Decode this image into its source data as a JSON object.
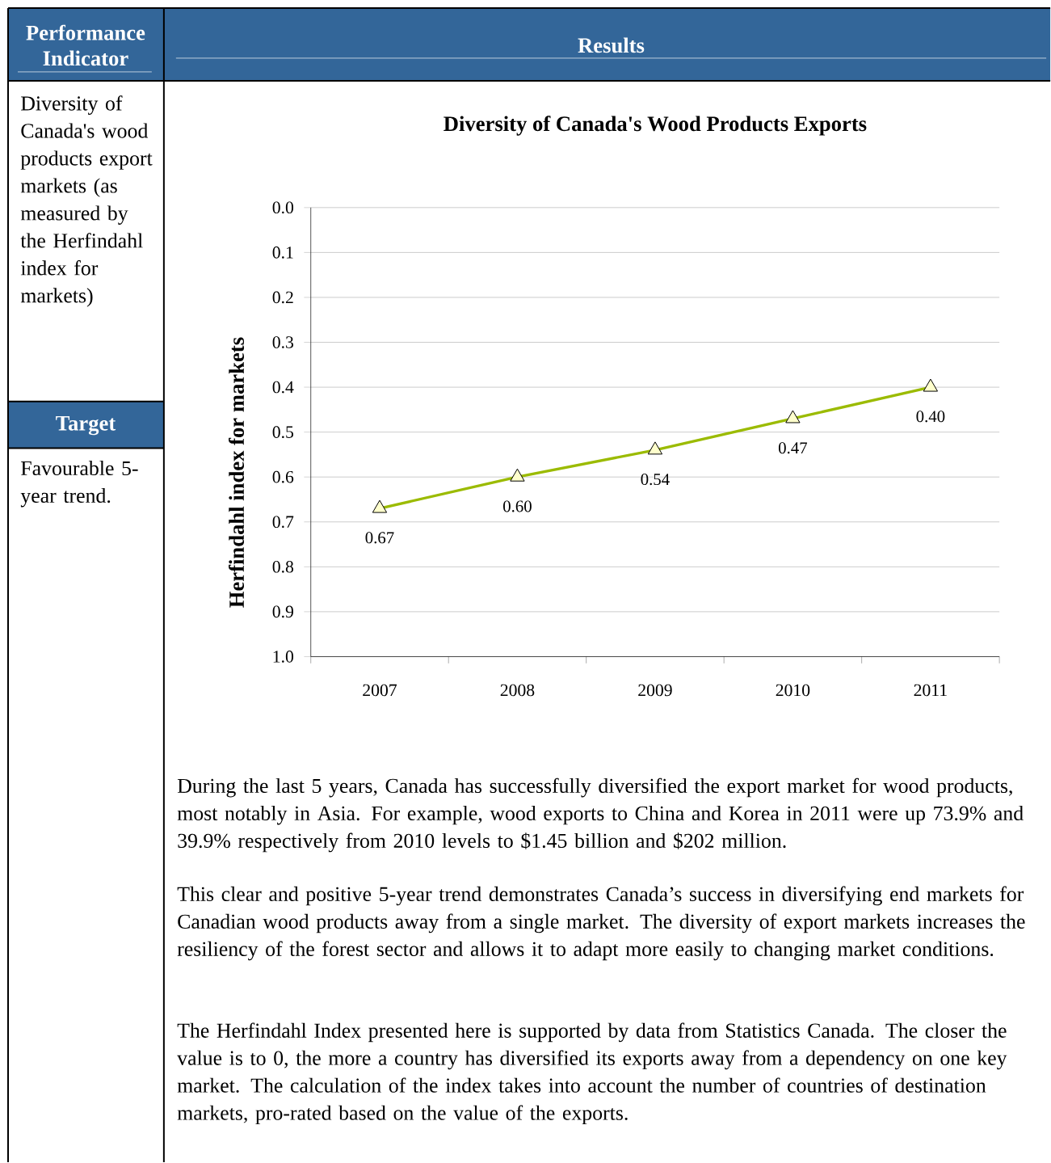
{
  "chart_data": {
    "type": "line",
    "title": "Diversity of Canada's Wood Products Exports",
    "ylabel": "Herfindahl index for markets",
    "categories": [
      "2007",
      "2008",
      "2009",
      "2010",
      "2011"
    ],
    "values": [
      0.67,
      0.6,
      0.54,
      0.47,
      0.4
    ],
    "value_labels": [
      "0.67",
      "0.60",
      "0.54",
      "0.47",
      "0.40"
    ],
    "color": "#9bbb00",
    "marker": "triangle",
    "line_style": "solid",
    "grid": "y",
    "ylim": [
      1.0,
      0.0
    ],
    "yticks": [
      {
        "value": 0,
        "label": "0.0"
      },
      0.1,
      0.2,
      0.3,
      0.4,
      0.5,
      0.6,
      0.7,
      0.8,
      0.9,
      {
        "value": 1,
        "label": "1.0"
      }
    ],
    "annotations": [
      "Performance Indicator",
      "Results",
      "Diversity of Canada's wood products export markets (as measured by the Herfindahl index for markets)",
      "Target",
      "Favourable 5-year trend.",
      "During the last 5 years, Canada has successfully diversified the export market for wood products, most notably in Asia. For example, wood exports to China and Korea in 2011 were up 73.9% and 39.9% respectively from 2010 levels to $1.45 billion and $202 million.",
      "This clear and positive 5-year trend demonstrates Canada’s success in diversifying end markets for Canadian wood products away from a single market. The diversity of export markets increases the resiliency of the forest sector and allows it to adapt more easily to changing market conditions.",
      "The Herfindahl Index presented here is supported by data from Statistics Canada. The closer the value is to 0, the more a country has diversified its exports away from a dependency on one key market. The calculation of the index takes into account the number of countries of destination markets, pro-rated based on the value of the exports."
    ]
  }
}
